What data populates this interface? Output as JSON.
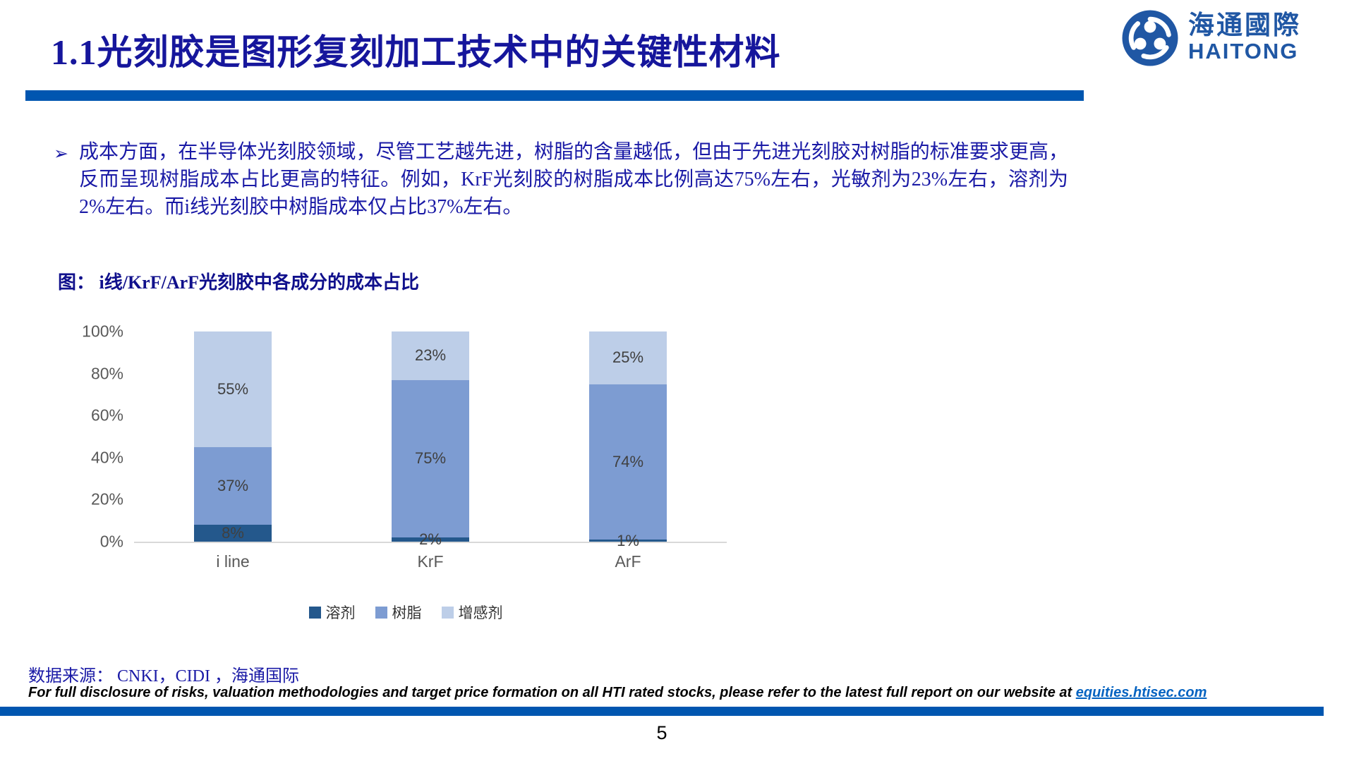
{
  "slide": {
    "title": "1.1光刻胶是图形复刻加工技术中的关键性材料",
    "page_number": "5"
  },
  "logo": {
    "name_cn": "海通國際",
    "name_en": "HAITONG"
  },
  "content": {
    "bullet_marker": "➢",
    "paragraph": "成本方面，在半导体光刻胶领域，尽管工艺越先进，树脂的含量越低，但由于先进光刻胶对树脂的标准要求更高，反而呈现树脂成本占比更高的特征。例如，KrF光刻胶的树脂成本比例高达75%左右，光敏剂为23%左右，溶剂为2%左右。而i线光刻胶中树脂成本仅占比37%左右。"
  },
  "figure": {
    "caption": "图：  i线/KrF/ArF光刻胶中各成分的成本占比"
  },
  "chart_data": {
    "type": "bar",
    "stacked": true,
    "title": "i线/KrF/ArF光刻胶中各成分的成本占比",
    "categories": [
      "i line",
      "KrF",
      "ArF"
    ],
    "series": [
      {
        "name": "溶剂",
        "color": "#24588c",
        "values": [
          8,
          2,
          1
        ]
      },
      {
        "name": "树脂",
        "color": "#7d9cd2",
        "values": [
          37,
          75,
          74
        ]
      },
      {
        "name": "增感剂",
        "color": "#bdcee8",
        "values": [
          55,
          23,
          25
        ]
      }
    ],
    "y_ticks": [
      "100%",
      "80%",
      "60%",
      "40%",
      "20%",
      "0%"
    ],
    "ylim": [
      0,
      100
    ],
    "grid": false,
    "data_labels": true,
    "legend_position": "bottom"
  },
  "footer": {
    "source_label": "数据来源： CNKI，CIDI ，海通国际",
    "disclosure_text": "For full disclosure of risks, valuation methodologies and target price formation on all HTI rated stocks, please refer to the latest full report on our website at ",
    "disclosure_link": "equities.htisec.com"
  },
  "colors": {
    "title_blue": "#16169c",
    "accent_bar_blue": "#0056b0",
    "logo_blue": "#2057a4",
    "body_text_blue": "#1a1aa6",
    "axis_label_gray": "#595959",
    "data_label_gray": "#404040",
    "axis_line_gray": "#d9d9d9",
    "link_blue": "#0563c1"
  }
}
